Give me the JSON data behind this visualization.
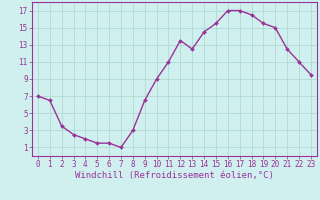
{
  "x": [
    0,
    1,
    2,
    3,
    4,
    5,
    6,
    7,
    8,
    9,
    10,
    11,
    12,
    13,
    14,
    15,
    16,
    17,
    18,
    19,
    20,
    21,
    22,
    23
  ],
  "y": [
    7.0,
    6.5,
    3.5,
    2.5,
    2.0,
    1.5,
    1.5,
    1.0,
    3.0,
    6.5,
    9.0,
    11.0,
    13.5,
    12.5,
    14.5,
    15.5,
    17.0,
    17.0,
    16.5,
    15.5,
    15.0,
    12.5,
    11.0,
    9.5
  ],
  "line_color": "#993399",
  "marker": "D",
  "marker_size": 2.0,
  "linewidth": 1.0,
  "xlabel": "Windchill (Refroidissement éolien,°C)",
  "xlabel_fontsize": 6.5,
  "ytick_vals": [
    1,
    3,
    5,
    7,
    9,
    11,
    13,
    15,
    17
  ],
  "xtick_labels": [
    "0",
    "1",
    "2",
    "3",
    "4",
    "5",
    "6",
    "7",
    "8",
    "9",
    "10",
    "11",
    "12",
    "13",
    "14",
    "15",
    "16",
    "17",
    "18",
    "19",
    "20",
    "21",
    "22",
    "23"
  ],
  "xlim": [
    -0.5,
    23.5
  ],
  "ylim": [
    0.0,
    18.0
  ],
  "bg_color": "#cff0ee",
  "grid_color": "#aad5cc",
  "tick_fontsize": 5.5
}
